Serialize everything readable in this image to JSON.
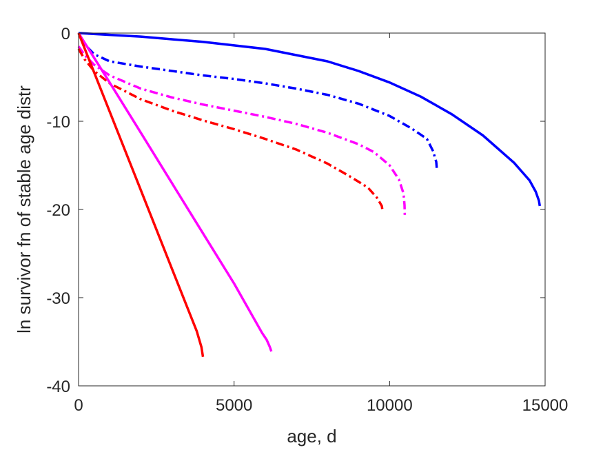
{
  "chart_data": {
    "type": "line",
    "title": "",
    "xlabel": "age, d",
    "ylabel": "ln survivor fn of stable age distr",
    "xlim": [
      0,
      15000
    ],
    "ylim": [
      -40,
      0
    ],
    "xticks": [
      0,
      5000,
      10000,
      15000
    ],
    "xtick_labels": [
      "0",
      "5000",
      "10000",
      "15000"
    ],
    "yticks": [
      -40,
      -30,
      -20,
      -10,
      0
    ],
    "ytick_labels": [
      "-40",
      "-30",
      "-20",
      "-10",
      "0"
    ],
    "grid": false,
    "legend": "none",
    "series": [
      {
        "color": "#0000ff",
        "style": "solid",
        "points": [
          [
            0,
            0
          ],
          [
            1000,
            -0.2
          ],
          [
            2000,
            -0.4
          ],
          [
            3000,
            -0.7
          ],
          [
            4000,
            -1.0
          ],
          [
            5000,
            -1.4
          ],
          [
            6000,
            -1.8
          ],
          [
            7000,
            -2.5
          ],
          [
            8000,
            -3.2
          ],
          [
            9000,
            -4.3
          ],
          [
            10000,
            -5.6
          ],
          [
            11000,
            -7.2
          ],
          [
            12000,
            -9.2
          ],
          [
            13000,
            -11.6
          ],
          [
            14000,
            -14.7
          ],
          [
            14500,
            -16.7
          ],
          [
            14700,
            -18.0
          ],
          [
            14800,
            -19.0
          ],
          [
            14830,
            -19.6
          ]
        ]
      },
      {
        "color": "#0000ff",
        "style": "dashdot",
        "points": [
          [
            0,
            0
          ],
          [
            200,
            -1.3
          ],
          [
            500,
            -2.4
          ],
          [
            1000,
            -3.2
          ],
          [
            2000,
            -3.8
          ],
          [
            3000,
            -4.3
          ],
          [
            4000,
            -4.8
          ],
          [
            5000,
            -5.2
          ],
          [
            6000,
            -5.7
          ],
          [
            7000,
            -6.3
          ],
          [
            8000,
            -7.0
          ],
          [
            9000,
            -8.0
          ],
          [
            10000,
            -9.4
          ],
          [
            10700,
            -10.8
          ],
          [
            11200,
            -12.0
          ],
          [
            11400,
            -13.4
          ],
          [
            11500,
            -14.6
          ],
          [
            11520,
            -15.4
          ]
        ]
      },
      {
        "color": "#ff00ff",
        "style": "dashdot",
        "points": [
          [
            0,
            -1.5
          ],
          [
            200,
            -2.5
          ],
          [
            500,
            -3.6
          ],
          [
            1000,
            -4.8
          ],
          [
            2000,
            -6.3
          ],
          [
            3000,
            -7.3
          ],
          [
            4000,
            -8.1
          ],
          [
            5000,
            -8.8
          ],
          [
            6000,
            -9.5
          ],
          [
            7000,
            -10.3
          ],
          [
            8000,
            -11.3
          ],
          [
            9000,
            -12.6
          ],
          [
            9500,
            -13.5
          ],
          [
            10000,
            -15.0
          ],
          [
            10300,
            -16.6
          ],
          [
            10450,
            -18.2
          ],
          [
            10480,
            -19.5
          ],
          [
            10490,
            -20.7
          ]
        ]
      },
      {
        "color": "#ff0000",
        "style": "dashdot",
        "points": [
          [
            0,
            -1.8
          ],
          [
            200,
            -3.0
          ],
          [
            500,
            -4.3
          ],
          [
            1000,
            -5.7
          ],
          [
            2000,
            -7.5
          ],
          [
            3000,
            -8.8
          ],
          [
            4000,
            -9.9
          ],
          [
            5000,
            -10.9
          ],
          [
            6000,
            -12.0
          ],
          [
            7000,
            -13.2
          ],
          [
            8000,
            -14.8
          ],
          [
            8700,
            -16.2
          ],
          [
            9300,
            -17.5
          ],
          [
            9600,
            -18.7
          ],
          [
            9750,
            -19.6
          ],
          [
            9780,
            -20.3
          ]
        ]
      },
      {
        "color": "#ff00ff",
        "style": "solid",
        "points": [
          [
            0,
            0
          ],
          [
            1000,
            -5.6
          ],
          [
            2000,
            -11.3
          ],
          [
            3000,
            -17.0
          ],
          [
            4000,
            -22.7
          ],
          [
            5000,
            -28.4
          ],
          [
            5900,
            -34.0
          ],
          [
            6050,
            -34.8
          ],
          [
            6150,
            -35.6
          ],
          [
            6200,
            -36.1
          ]
        ]
      },
      {
        "color": "#ff0000",
        "style": "solid",
        "points": [
          [
            0,
            0
          ],
          [
            1000,
            -8.9
          ],
          [
            2000,
            -17.8
          ],
          [
            3000,
            -26.7
          ],
          [
            3800,
            -33.8
          ],
          [
            3950,
            -35.6
          ],
          [
            4000,
            -36.7
          ]
        ]
      }
    ]
  }
}
